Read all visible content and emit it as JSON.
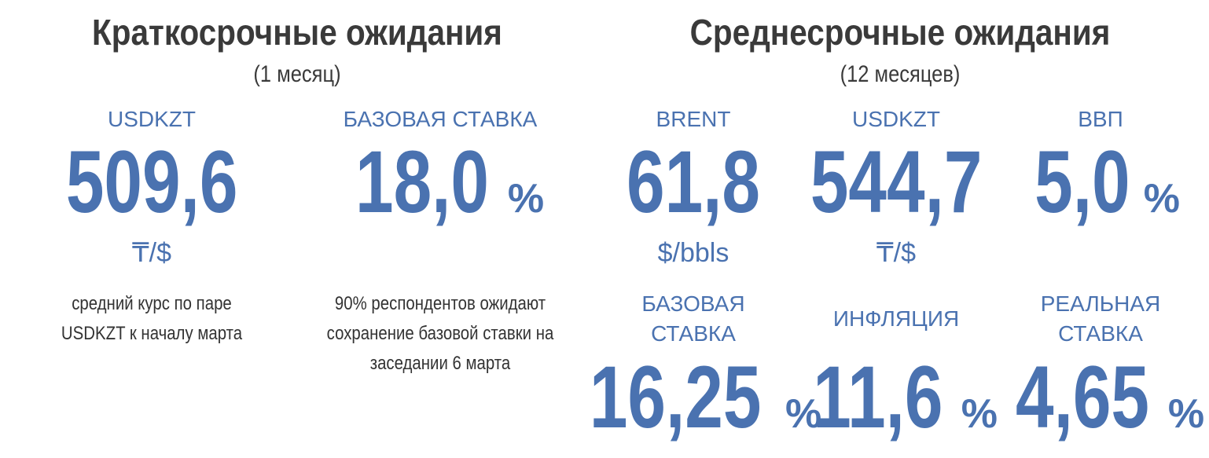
{
  "left": {
    "title": "Краткосрочные ожидания",
    "subtitle": "(1 месяц)",
    "items": [
      {
        "label": "USDKZT",
        "value": "509,6",
        "unit": "₸/$",
        "note": [
          "средний курс по паре",
          "USDKZT к началу марта"
        ]
      },
      {
        "label": "БАЗОВАЯ СТАВКА",
        "value": "18,0",
        "suffix": "%",
        "note": [
          "90% респондентов ожидают",
          "сохранение базовой ставки на",
          "заседании 6 марта"
        ]
      }
    ]
  },
  "right": {
    "title": "Среднесрочные ожидания",
    "subtitle": "(12 месяцев)",
    "items": [
      {
        "label": "BRENT",
        "value": "61,8",
        "unit": "$/bbls"
      },
      {
        "label": "USDKZT",
        "value": "544,7",
        "unit": "₸/$"
      },
      {
        "label": "ВВП",
        "value": "5,0",
        "suffix": "%"
      },
      {
        "label": "БАЗОВАЯ СТАВКА",
        "value": "16,25",
        "suffix": "%"
      },
      {
        "label": "ИНФЛЯЦИЯ",
        "value": "11,6",
        "suffix": "%"
      },
      {
        "label": "РЕАЛЬНАЯ СТАВКА",
        "value": "4,65",
        "suffix": "%"
      }
    ]
  }
}
